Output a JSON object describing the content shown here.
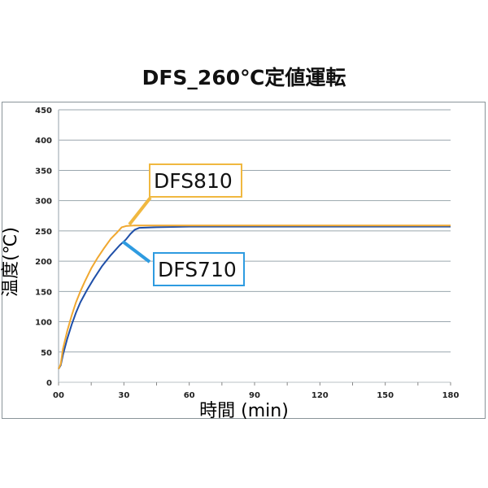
{
  "chart_data": {
    "type": "line",
    "title": "DFS_260℃定値運転",
    "xlabel": "時間 (min)",
    "ylabel": "温度(℃)",
    "xlim": [
      0,
      180
    ],
    "ylim": [
      0,
      450
    ],
    "xticks": [
      "00",
      "30",
      "60",
      "90",
      "120",
      "150",
      "180"
    ],
    "yticks": [
      "0",
      "50",
      "100",
      "150",
      "200",
      "250",
      "300",
      "350",
      "400",
      "450"
    ],
    "grid": "horizontal",
    "series": [
      {
        "name": "DFS810",
        "color": "#F0A830",
        "x": [
          0,
          1,
          2,
          4,
          6,
          8,
          10,
          12,
          15,
          18,
          21,
          24,
          27,
          29,
          31,
          35,
          60,
          90,
          120,
          150,
          180
        ],
        "y": [
          22,
          30,
          55,
          85,
          110,
          132,
          150,
          166,
          188,
          206,
          222,
          237,
          248,
          256,
          258,
          259,
          259,
          259,
          259,
          259,
          259
        ]
      },
      {
        "name": "DFS710",
        "color": "#1F4FA8",
        "x": [
          0,
          1,
          2,
          4,
          6,
          8,
          10,
          13,
          16,
          20,
          24,
          28,
          31,
          33,
          35,
          37,
          45,
          60,
          90,
          120,
          150,
          180
        ],
        "y": [
          22,
          28,
          45,
          72,
          95,
          115,
          132,
          152,
          170,
          192,
          210,
          226,
          236,
          245,
          252,
          255,
          256,
          257,
          257,
          257,
          257,
          257
        ]
      }
    ],
    "annotations": [
      {
        "text": "DFS810",
        "border": "#F0B840"
      },
      {
        "text": "DFS710",
        "border": "#2E9BE0"
      }
    ]
  }
}
